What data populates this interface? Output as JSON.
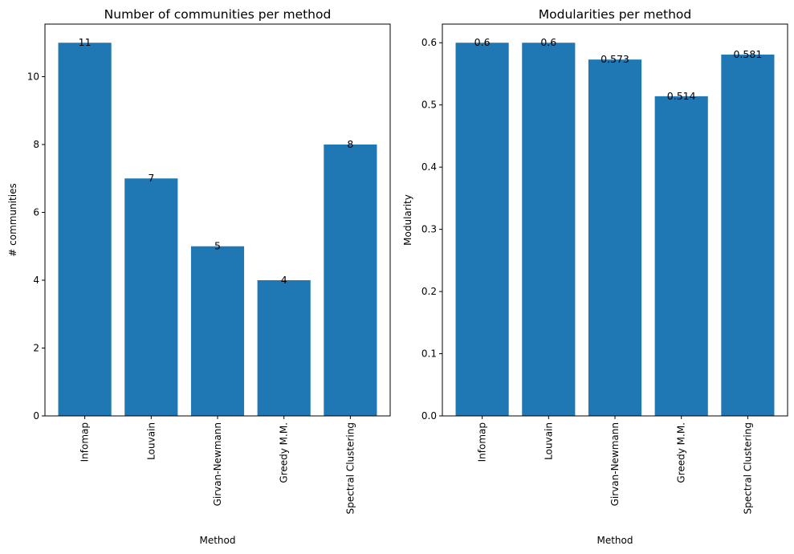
{
  "colors": {
    "bar": "#1f77b4"
  },
  "chart_data": [
    {
      "type": "bar",
      "title": "Number of communities per method",
      "xlabel": "Method",
      "ylabel": "# communities",
      "categories": [
        "Infomap",
        "Louvain",
        "Girvan-Newmann",
        "Greedy M.M.",
        "Spectral Clustering"
      ],
      "values": [
        11,
        7,
        5,
        4,
        8
      ],
      "value_labels": [
        "11",
        "7",
        "5",
        "4",
        "8"
      ],
      "ylim": [
        0,
        11.55
      ],
      "yticks": [
        0,
        2,
        4,
        6,
        8,
        10
      ],
      "ytick_labels": [
        "0",
        "2",
        "4",
        "6",
        "8",
        "10"
      ],
      "grid": false
    },
    {
      "type": "bar",
      "title": "Modularities per method",
      "xlabel": "Method",
      "ylabel": "Modularity",
      "categories": [
        "Infomap",
        "Louvain",
        "Girvan-Newmann",
        "Greedy M.M.",
        "Spectral Clustering"
      ],
      "values": [
        0.6,
        0.6,
        0.573,
        0.514,
        0.581
      ],
      "value_labels": [
        "0.6",
        "0.6",
        "0.573",
        "0.514",
        "0.581"
      ],
      "ylim": [
        0,
        0.63
      ],
      "yticks": [
        0,
        0.1,
        0.2,
        0.3,
        0.4,
        0.5,
        0.6
      ],
      "ytick_labels": [
        "0.0",
        "0.1",
        "0.2",
        "0.3",
        "0.4",
        "0.5",
        "0.6"
      ],
      "grid": false
    }
  ]
}
